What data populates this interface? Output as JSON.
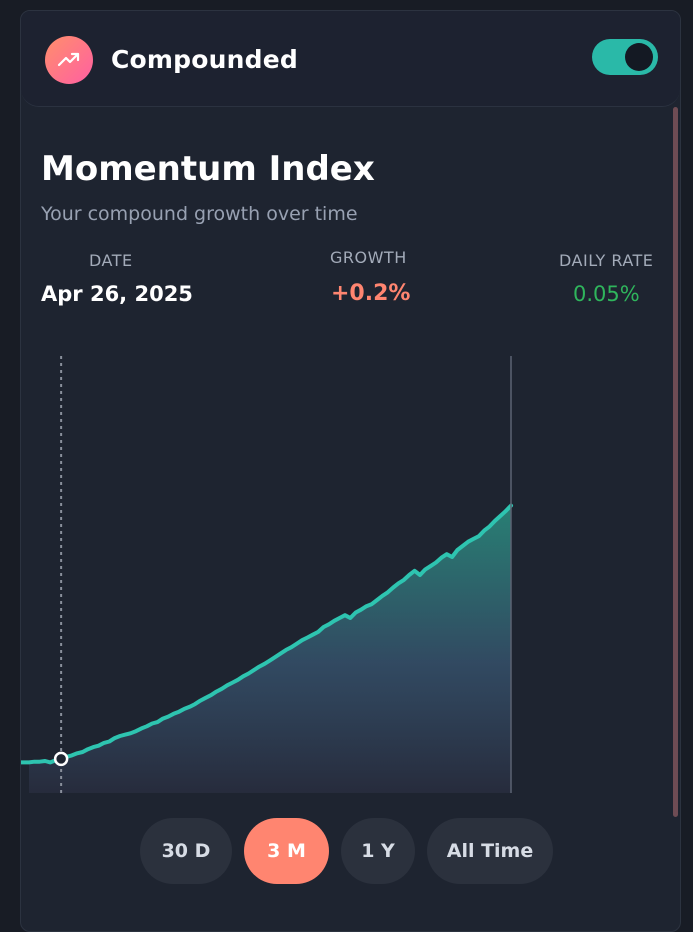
{
  "header": {
    "brand": "Compounded",
    "toggle_on": true
  },
  "card": {
    "title": "Momentum Index",
    "subtitle": "Your compound growth over time"
  },
  "stats": {
    "date_label": "DATE",
    "date_value": "Apr 26, 2025",
    "growth_label": "GROWTH",
    "growth_value": "+0.2%",
    "rate_label": "DAILY RATE",
    "rate_value": "0.05%"
  },
  "colors": {
    "accent": "#2ab9a8",
    "growth": "#ff8570",
    "rate": "#2fb55c",
    "brand_gradient_start": "#ff8f6b",
    "brand_gradient_end": "#ff5fa2"
  },
  "ranges": [
    {
      "label": "30 D",
      "active": false
    },
    {
      "label": "3 M",
      "active": true
    },
    {
      "label": "1 Y",
      "active": false
    },
    {
      "label": "All Time",
      "active": false
    }
  ],
  "chart_data": {
    "type": "area",
    "period": "3 M",
    "selected_index": 6,
    "values": [
      100.0,
      100.01,
      100.01,
      100.02,
      100.0,
      100.03,
      100.05,
      100.08,
      100.1,
      100.13,
      100.15,
      100.19,
      100.22,
      100.24,
      100.28,
      100.3,
      100.35,
      100.38,
      100.4,
      100.42,
      100.45,
      100.49,
      100.52,
      100.56,
      100.58,
      100.63,
      100.66,
      100.7,
      100.73,
      100.77,
      100.8,
      100.84,
      100.89,
      100.93,
      100.97,
      101.02,
      101.06,
      101.11,
      101.15,
      101.19,
      101.24,
      101.28,
      101.33,
      101.38,
      101.42,
      101.47,
      101.52,
      101.57,
      101.62,
      101.66,
      101.71,
      101.76,
      101.8,
      101.84,
      101.88,
      101.95,
      101.99,
      102.04,
      102.08,
      102.12,
      102.08,
      102.16,
      102.2,
      102.25,
      102.28,
      102.34,
      102.4,
      102.45,
      102.52,
      102.58,
      102.63,
      102.7,
      102.76,
      102.7,
      102.78,
      102.83,
      102.88,
      102.95,
      103.0,
      102.96,
      103.06,
      103.12,
      103.18,
      103.22,
      103.26,
      103.34,
      103.4,
      103.48,
      103.55,
      103.62,
      103.7
    ],
    "ylim": [
      99.4,
      106.0
    ],
    "grid": false
  }
}
